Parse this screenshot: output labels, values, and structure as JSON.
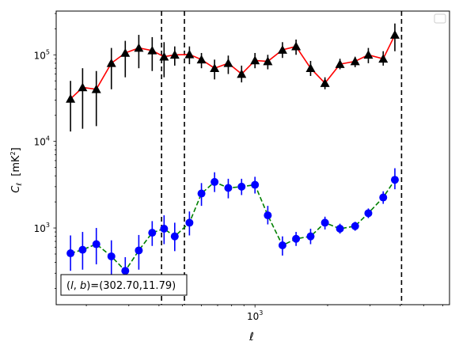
{
  "chart_data": {
    "type": "scatter",
    "xscale": "log",
    "yscale": "log",
    "xlim": [
      150,
      6400
    ],
    "ylim": [
      130,
      320000
    ],
    "xlabel": "ℓ",
    "ylabel_main": "C",
    "ylabel_sub": "ℓ",
    "ylabel_units_pre": "  [mK",
    "ylabel_units_sup": "2",
    "ylabel_units_post": "]",
    "x_ticks": [
      {
        "value": 1000,
        "base": "10",
        "exp": "3"
      }
    ],
    "y_ticks": [
      {
        "value": 1000,
        "base": "10",
        "exp": "3"
      },
      {
        "value": 10000,
        "base": "10",
        "exp": "4"
      },
      {
        "value": 100000,
        "base": "10",
        "exp": "5"
      }
    ],
    "vlines": [
      410,
      510,
      4050
    ],
    "annotation": {
      "text": "(l, b)=(302.70,11.79)",
      "prefix": "(",
      "l": "l",
      "mid": ", ",
      "b": "b",
      "suffix": ")=(302.70,11.79)"
    },
    "legend": "top-right (empty)",
    "series": [
      {
        "marker": "triangle",
        "marker_color": "#000000",
        "line_color": "#ff0000",
        "linestyle": "solid",
        "points": [
          {
            "x": 172,
            "y": 31000,
            "lo": 13000,
            "hi": 50000
          },
          {
            "x": 193,
            "y": 42000,
            "lo": 14000,
            "hi": 70000
          },
          {
            "x": 220,
            "y": 40000,
            "lo": 15000,
            "hi": 65000
          },
          {
            "x": 254,
            "y": 80000,
            "lo": 40000,
            "hi": 120000
          },
          {
            "x": 290,
            "y": 105000,
            "lo": 55000,
            "hi": 145000
          },
          {
            "x": 330,
            "y": 120000,
            "lo": 70000,
            "hi": 170000
          },
          {
            "x": 375,
            "y": 112000,
            "lo": 65000,
            "hi": 160000
          },
          {
            "x": 420,
            "y": 95000,
            "lo": 55000,
            "hi": 140000
          },
          {
            "x": 465,
            "y": 100000,
            "lo": 75000,
            "hi": 125000
          },
          {
            "x": 535,
            "y": 101000,
            "lo": 78000,
            "hi": 125000
          },
          {
            "x": 600,
            "y": 88000,
            "lo": 70000,
            "hi": 105000
          },
          {
            "x": 680,
            "y": 70000,
            "lo": 52000,
            "hi": 88000
          },
          {
            "x": 775,
            "y": 80000,
            "lo": 60000,
            "hi": 98000
          },
          {
            "x": 880,
            "y": 60000,
            "lo": 48000,
            "hi": 75000
          },
          {
            "x": 1000,
            "y": 86000,
            "lo": 70000,
            "hi": 105000
          },
          {
            "x": 1130,
            "y": 84000,
            "lo": 68000,
            "hi": 100000
          },
          {
            "x": 1300,
            "y": 114000,
            "lo": 92000,
            "hi": 140000
          },
          {
            "x": 1480,
            "y": 125000,
            "lo": 100000,
            "hi": 150000
          },
          {
            "x": 1700,
            "y": 70000,
            "lo": 57000,
            "hi": 85000
          },
          {
            "x": 1950,
            "y": 47000,
            "lo": 40000,
            "hi": 55000
          },
          {
            "x": 2250,
            "y": 78000,
            "lo": 68000,
            "hi": 90000
          },
          {
            "x": 2600,
            "y": 84000,
            "lo": 72000,
            "hi": 95000
          },
          {
            "x": 2950,
            "y": 100000,
            "lo": 80000,
            "hi": 120000
          },
          {
            "x": 3400,
            "y": 90000,
            "lo": 75000,
            "hi": 110000
          },
          {
            "x": 3800,
            "y": 170000,
            "lo": 110000,
            "hi": 230000
          }
        ]
      },
      {
        "marker": "circle",
        "marker_color": "#0000ff",
        "line_color": "#008000",
        "linestyle": "dashed",
        "points": [
          {
            "x": 172,
            "y": 510,
            "lo": 320,
            "hi": 820
          },
          {
            "x": 193,
            "y": 560,
            "lo": 330,
            "hi": 900
          },
          {
            "x": 220,
            "y": 650,
            "lo": 380,
            "hi": 1000
          },
          {
            "x": 254,
            "y": 470,
            "lo": 280,
            "hi": 720
          },
          {
            "x": 290,
            "y": 320,
            "lo": 200,
            "hi": 460
          },
          {
            "x": 330,
            "y": 550,
            "lo": 330,
            "hi": 830
          },
          {
            "x": 375,
            "y": 880,
            "lo": 620,
            "hi": 1200
          },
          {
            "x": 420,
            "y": 980,
            "lo": 650,
            "hi": 1400
          },
          {
            "x": 465,
            "y": 800,
            "lo": 540,
            "hi": 1150
          },
          {
            "x": 535,
            "y": 1150,
            "lo": 820,
            "hi": 1550
          },
          {
            "x": 600,
            "y": 2500,
            "lo": 1800,
            "hi": 3300
          },
          {
            "x": 680,
            "y": 3400,
            "lo": 2600,
            "hi": 4400
          },
          {
            "x": 775,
            "y": 2900,
            "lo": 2200,
            "hi": 3700
          },
          {
            "x": 880,
            "y": 3000,
            "lo": 2400,
            "hi": 3700
          },
          {
            "x": 1000,
            "y": 3150,
            "lo": 2500,
            "hi": 3900
          },
          {
            "x": 1130,
            "y": 1400,
            "lo": 1100,
            "hi": 1800
          },
          {
            "x": 1300,
            "y": 630,
            "lo": 480,
            "hi": 800
          },
          {
            "x": 1480,
            "y": 750,
            "lo": 620,
            "hi": 900
          },
          {
            "x": 1700,
            "y": 800,
            "lo": 650,
            "hi": 980
          },
          {
            "x": 1950,
            "y": 1150,
            "lo": 960,
            "hi": 1350
          },
          {
            "x": 2250,
            "y": 980,
            "lo": 860,
            "hi": 1120
          },
          {
            "x": 2600,
            "y": 1050,
            "lo": 930,
            "hi": 1180
          },
          {
            "x": 2950,
            "y": 1480,
            "lo": 1300,
            "hi": 1680
          },
          {
            "x": 3400,
            "y": 2250,
            "lo": 1900,
            "hi": 2650
          },
          {
            "x": 3800,
            "y": 3600,
            "lo": 2800,
            "hi": 4900
          }
        ]
      }
    ]
  }
}
